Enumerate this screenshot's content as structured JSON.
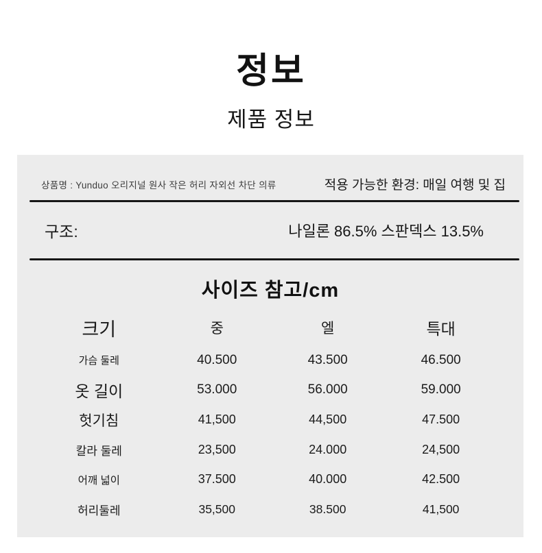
{
  "header": {
    "title": "정보",
    "subtitle": "제품 정보"
  },
  "info_panel": {
    "product_name": "상품명 : Yunduo 오리지널 원사 작은 허리 자외선 차단 의류",
    "environment": "적용 가능한 환경: 매일 여행 및 집",
    "structure_label": "구조:",
    "structure_value": "나일론 86.5% 스판덱스 13.5%",
    "size_section_title": "사이즈 참고/cm"
  },
  "size_table": {
    "columns": [
      "크기",
      "중",
      "엘",
      "특대"
    ],
    "rows": [
      {
        "label": "가슴 둘레",
        "values": [
          "40.500",
          "43.500",
          "46.500"
        ]
      },
      {
        "label": "옷 길이",
        "values": [
          "53.000",
          "56.000",
          "59.000"
        ]
      },
      {
        "label": "헛기침",
        "values": [
          "41,500",
          "44,500",
          "47.500"
        ]
      },
      {
        "label": "칼라 둘레",
        "values": [
          "23,500",
          "24.000",
          "24,500"
        ]
      },
      {
        "label": "어깨 넓이",
        "values": [
          "37.500",
          "40.000",
          "42.500"
        ]
      },
      {
        "label": "허리둘레",
        "values": [
          "35,500",
          "38.500",
          "41,500"
        ]
      }
    ]
  },
  "colors": {
    "page_bg": "#ffffff",
    "panel_bg": "#ececec",
    "divider": "#161616",
    "text": "#1b1b1b"
  }
}
